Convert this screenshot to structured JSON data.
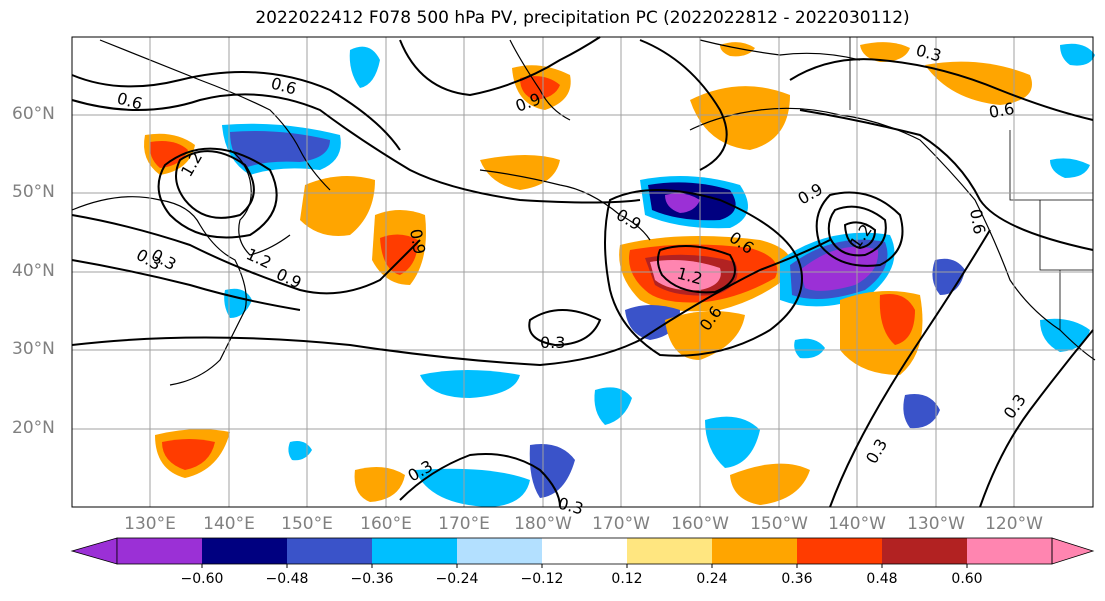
{
  "title": "2022022412 F078 500 hPa PV, precipitation PC (2022022812 - 2022030112)",
  "lat_labels": [
    "60°N",
    "50°N",
    "40°N",
    "30°N",
    "20°N"
  ],
  "lon_labels": [
    "130°E",
    "140°E",
    "150°E",
    "160°E",
    "170°E",
    "180°W",
    "170°W",
    "160°W",
    "150°W",
    "140°W",
    "130°W",
    "120°W"
  ],
  "contour_labels": [
    "0.6",
    "0.6",
    "0.9",
    "0.3",
    "0.6",
    "1.2",
    "0.3",
    "0.9",
    "1.2",
    "0.9",
    "0.3",
    "0.9",
    "0.6",
    "1.2",
    "0.9",
    "1.2",
    "0.6",
    "0.3",
    "0.3",
    "0.3",
    "0.3",
    "0.3",
    "0.6"
  ],
  "colorbar": {
    "tick_labels": [
      "−0.60",
      "−0.48",
      "−0.36",
      "−0.24",
      "−0.12",
      "0.12",
      "0.24",
      "0.36",
      "0.48",
      "0.60"
    ],
    "colors": [
      "#9b30d6",
      "#000080",
      "#3a53c9",
      "#00bfff",
      "#b3e0ff",
      "#ffffff",
      "#ffe680",
      "#ffa500",
      "#ff3c00",
      "#b22222",
      "#ff85b0"
    ]
  },
  "colors": {
    "grid": "#a0a0a0",
    "contour": "#000000",
    "axis_text": "#808080"
  }
}
